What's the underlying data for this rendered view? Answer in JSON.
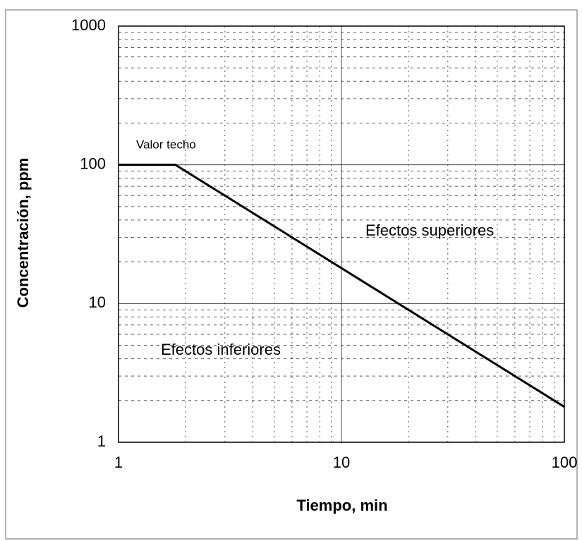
{
  "chart_data": {
    "type": "line",
    "x_label": "Tiempo, min",
    "y_label": "Concentración, ppm",
    "x_scale": "log",
    "y_scale": "log",
    "xlim": [
      1,
      100
    ],
    "ylim": [
      1,
      1000
    ],
    "xticks": [
      1,
      10,
      100
    ],
    "yticks": [
      1,
      10,
      100,
      1000
    ],
    "xminorticks": [
      2,
      3,
      4,
      5,
      6,
      7,
      8,
      9,
      20,
      30,
      40,
      50,
      60,
      70,
      80,
      90
    ],
    "yminorticks": [
      2,
      3,
      4,
      5,
      6,
      7,
      8,
      9,
      20,
      30,
      40,
      50,
      60,
      70,
      80,
      90,
      200,
      300,
      400,
      500,
      600,
      700,
      800,
      900
    ],
    "grid": true,
    "series": [
      {
        "color": "#000000",
        "x": [
          1,
          1.8,
          100
        ],
        "values": [
          100,
          100,
          1.8
        ]
      }
    ],
    "annotations": [
      "Valor techo",
      "Efectos superiores",
      "Efectos inferiores"
    ]
  }
}
